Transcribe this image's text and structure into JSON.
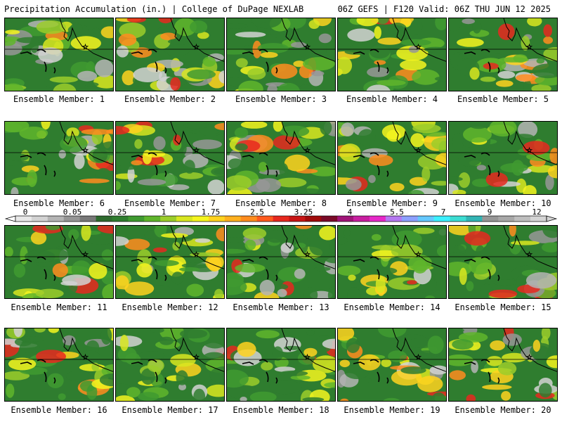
{
  "header": {
    "left": "Precipitation Accumulation (in.) | College of DuPage NEXLAB",
    "right": "06Z GEFS | F120 Valid: 06Z THU JUN 12 2025"
  },
  "colorbar": {
    "labels": [
      "0",
      "0.05",
      "0.25",
      "1",
      "1.75",
      "2.5",
      "3.25",
      "4",
      "5.5",
      "7",
      "9",
      "12"
    ],
    "colors": [
      "#e8e8e8",
      "#d2d2d2",
      "#b4b4b4",
      "#969696",
      "#787878",
      "#2e6b2e",
      "#2f7d2f",
      "#3f9a30",
      "#5fb52c",
      "#9bcd2a",
      "#d8e620",
      "#f5f51e",
      "#ffd21e",
      "#ffb01e",
      "#ff8c1e",
      "#ff5a1e",
      "#e6281e",
      "#c81414",
      "#a00a0a",
      "#7a0a28",
      "#a01478",
      "#c81ea0",
      "#e628c8",
      "#b478f0",
      "#8ca0ff",
      "#64c8ff",
      "#3cf0ff",
      "#3cdcd2",
      "#32b4b4",
      "#969696",
      "#a8a8a8",
      "#bebebe",
      "#d4d4d4"
    ]
  },
  "members": [
    {
      "label": "Ensemble Member: 1"
    },
    {
      "label": "Ensemble Member: 2"
    },
    {
      "label": "Ensemble Member: 3"
    },
    {
      "label": "Ensemble Member: 4"
    },
    {
      "label": "Ensemble Member: 5"
    },
    {
      "label": "Ensemble Member: 6"
    },
    {
      "label": "Ensemble Member: 7"
    },
    {
      "label": "Ensemble Member: 8"
    },
    {
      "label": "Ensemble Member: 9"
    },
    {
      "label": "Ensemble Member: 10"
    },
    {
      "label": "Ensemble Member: 11"
    },
    {
      "label": "Ensemble Member: 12"
    },
    {
      "label": "Ensemble Member: 13"
    },
    {
      "label": "Ensemble Member: 14"
    },
    {
      "label": "Ensemble Member: 15"
    },
    {
      "label": "Ensemble Member: 16"
    },
    {
      "label": "Ensemble Member: 17"
    },
    {
      "label": "Ensemble Member: 18"
    },
    {
      "label": "Ensemble Member: 19"
    },
    {
      "label": "Ensemble Member: 20"
    }
  ]
}
